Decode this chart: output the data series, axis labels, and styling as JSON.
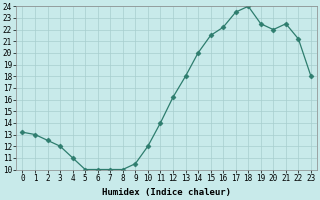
{
  "x": [
    0,
    1,
    2,
    3,
    4,
    5,
    6,
    7,
    8,
    9,
    10,
    11,
    12,
    13,
    14,
    15,
    16,
    17,
    18,
    19,
    20,
    21,
    22,
    23
  ],
  "y": [
    13.2,
    13.0,
    12.5,
    12.0,
    11.0,
    10.0,
    10.0,
    10.0,
    10.0,
    10.5,
    12.0,
    14.0,
    16.2,
    18.0,
    20.0,
    21.5,
    22.2,
    23.5,
    24.0,
    22.5,
    22.0,
    22.5,
    21.2,
    18.0
  ],
  "line_color": "#2e7d6e",
  "marker": "D",
  "marker_size": 2.5,
  "bg_color": "#c8eaea",
  "grid_color": "#a8cece",
  "xlabel": "Humidex (Indice chaleur)",
  "ylim": [
    10,
    24
  ],
  "xlim": [
    -0.5,
    23.5
  ],
  "yticks": [
    10,
    11,
    12,
    13,
    14,
    15,
    16,
    17,
    18,
    19,
    20,
    21,
    22,
    23,
    24
  ],
  "xticks": [
    0,
    1,
    2,
    3,
    4,
    5,
    6,
    7,
    8,
    9,
    10,
    11,
    12,
    13,
    14,
    15,
    16,
    17,
    18,
    19,
    20,
    21,
    22,
    23
  ],
  "label_fontsize": 6.5,
  "tick_fontsize": 5.5
}
